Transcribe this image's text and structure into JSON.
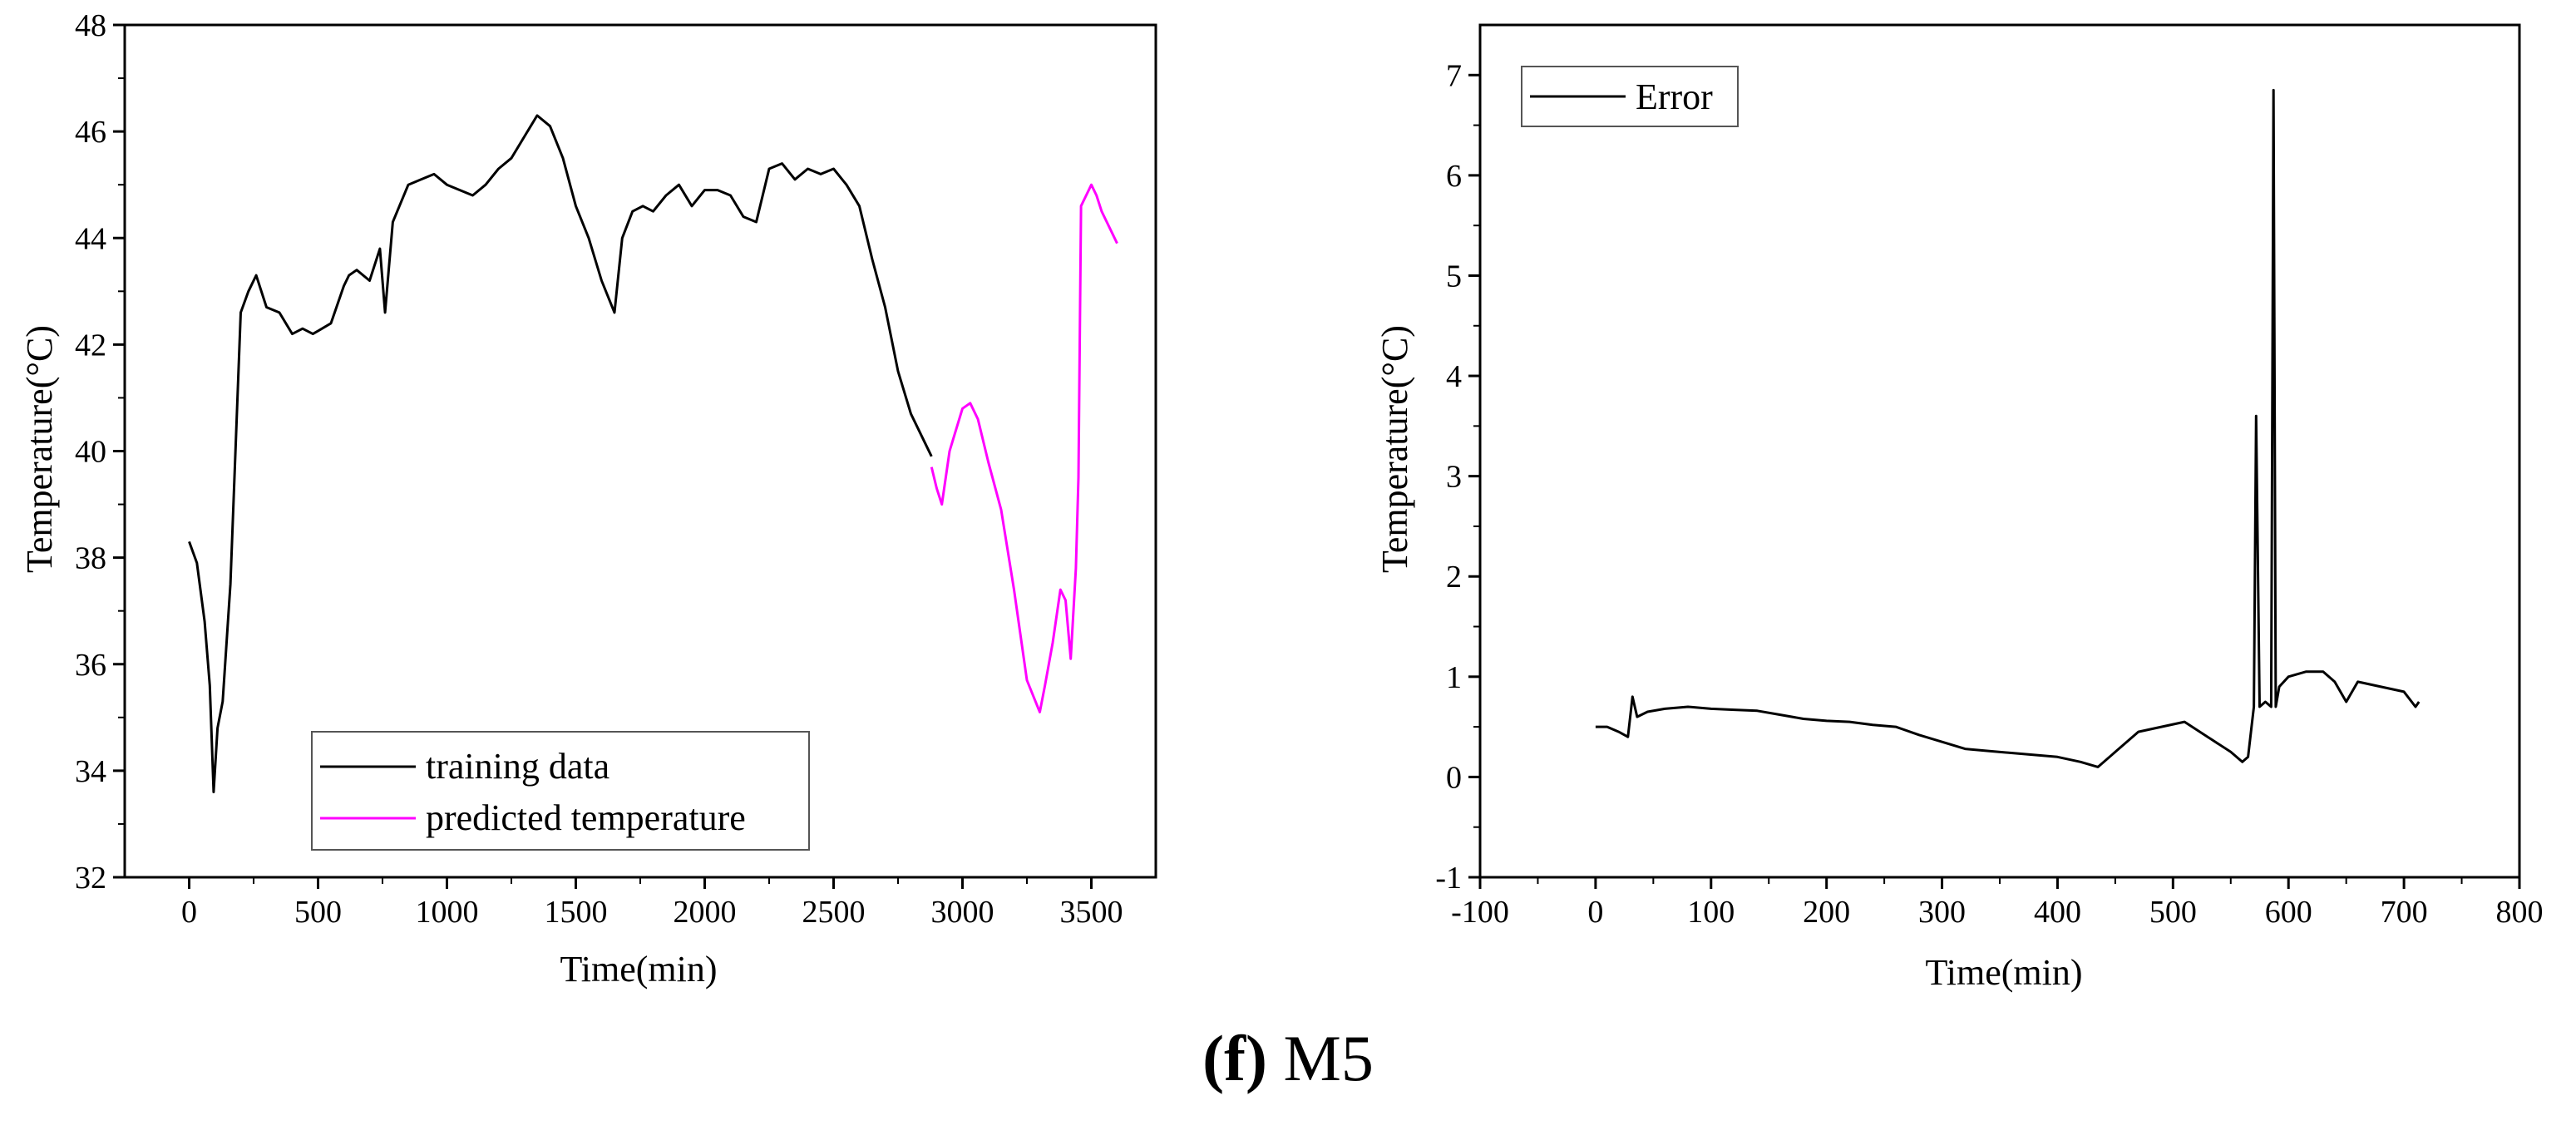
{
  "caption": {
    "letter": "(f)",
    "text": "M5"
  },
  "chart_data": [
    {
      "type": "line",
      "title": "",
      "xlabel": "Time(min)",
      "ylabel": "Temperature(°C)",
      "xlim": [
        -250,
        3750
      ],
      "ylim": [
        32,
        48
      ],
      "xticks": [
        0,
        500,
        1000,
        1500,
        2000,
        2500,
        3000,
        3500
      ],
      "yticks": [
        32,
        34,
        36,
        38,
        40,
        42,
        44,
        46,
        48
      ],
      "legend_position": "bottom-center",
      "series": [
        {
          "name": "training data",
          "color": "#000000",
          "x": [
            0,
            30,
            60,
            80,
            95,
            110,
            130,
            160,
            200,
            230,
            260,
            300,
            350,
            400,
            440,
            480,
            550,
            600,
            620,
            650,
            700,
            740,
            760,
            790,
            850,
            900,
            950,
            1000,
            1100,
            1150,
            1200,
            1250,
            1300,
            1350,
            1400,
            1450,
            1500,
            1550,
            1600,
            1650,
            1680,
            1720,
            1760,
            1800,
            1850,
            1900,
            1950,
            2000,
            2050,
            2100,
            2150,
            2200,
            2250,
            2300,
            2350,
            2400,
            2450,
            2500,
            2550,
            2600,
            2650,
            2700,
            2750,
            2800,
            2850,
            2880
          ],
          "values": [
            38.3,
            37.9,
            36.8,
            35.6,
            33.6,
            34.8,
            35.3,
            37.5,
            42.6,
            43.0,
            43.3,
            42.7,
            42.6,
            42.2,
            42.3,
            42.2,
            42.4,
            43.1,
            43.3,
            43.4,
            43.2,
            43.8,
            42.6,
            44.3,
            45.0,
            45.1,
            45.2,
            45.0,
            44.8,
            45.0,
            45.3,
            45.5,
            45.9,
            46.3,
            46.1,
            45.5,
            44.6,
            44.0,
            43.2,
            42.6,
            44.0,
            44.5,
            44.6,
            44.5,
            44.8,
            45.0,
            44.6,
            44.9,
            44.9,
            44.8,
            44.4,
            44.3,
            45.3,
            45.4,
            45.1,
            45.3,
            45.2,
            45.3,
            45.0,
            44.6,
            43.6,
            42.7,
            41.5,
            40.7,
            40.2,
            39.9
          ]
        },
        {
          "name": "predicted temperature",
          "color": "#ff00ff",
          "x": [
            2880,
            2900,
            2920,
            2950,
            3000,
            3030,
            3060,
            3100,
            3150,
            3200,
            3250,
            3300,
            3320,
            3350,
            3380,
            3400,
            3420,
            3440,
            3450,
            3460,
            3470,
            3480,
            3500,
            3520,
            3540,
            3560,
            3580,
            3600
          ],
          "values": [
            39.7,
            39.3,
            39.0,
            40.0,
            40.8,
            40.9,
            40.6,
            39.8,
            38.9,
            37.4,
            35.7,
            35.1,
            35.6,
            36.4,
            37.4,
            37.2,
            36.1,
            37.8,
            39.5,
            44.6,
            44.7,
            44.8,
            45.0,
            44.8,
            44.5,
            44.3,
            44.1,
            43.9
          ]
        }
      ]
    },
    {
      "type": "line",
      "title": "",
      "xlabel": "Time(min)",
      "ylabel": "Temperature(°C)",
      "xlim": [
        -100,
        800
      ],
      "ylim": [
        -1,
        7.5
      ],
      "xticks": [
        -100,
        0,
        100,
        200,
        300,
        400,
        500,
        600,
        700,
        800
      ],
      "yticks": [
        -1,
        0,
        1,
        2,
        3,
        4,
        5,
        6,
        7
      ],
      "legend_position": "top-left",
      "series": [
        {
          "name": "Error",
          "color": "#000000",
          "x": [
            0,
            10,
            20,
            28,
            32,
            36,
            45,
            60,
            80,
            100,
            120,
            140,
            160,
            180,
            200,
            220,
            240,
            260,
            280,
            300,
            320,
            340,
            360,
            380,
            400,
            420,
            435,
            450,
            470,
            490,
            510,
            530,
            550,
            560,
            565,
            568,
            570,
            572,
            575,
            580,
            585,
            587,
            589,
            592,
            600,
            615,
            630,
            640,
            650,
            660,
            680,
            700,
            710,
            713
          ],
          "values": [
            0.5,
            0.5,
            0.45,
            0.4,
            0.8,
            0.6,
            0.65,
            0.68,
            0.7,
            0.68,
            0.67,
            0.66,
            0.62,
            0.58,
            0.56,
            0.55,
            0.52,
            0.5,
            0.42,
            0.35,
            0.28,
            0.26,
            0.24,
            0.22,
            0.2,
            0.15,
            0.1,
            0.25,
            0.45,
            0.5,
            0.55,
            0.4,
            0.25,
            0.15,
            0.2,
            0.5,
            0.7,
            3.6,
            0.7,
            0.75,
            0.7,
            6.85,
            0.7,
            0.9,
            1.0,
            1.05,
            1.05,
            0.95,
            0.75,
            0.95,
            0.9,
            0.85,
            0.7,
            0.75
          ]
        }
      ]
    }
  ]
}
